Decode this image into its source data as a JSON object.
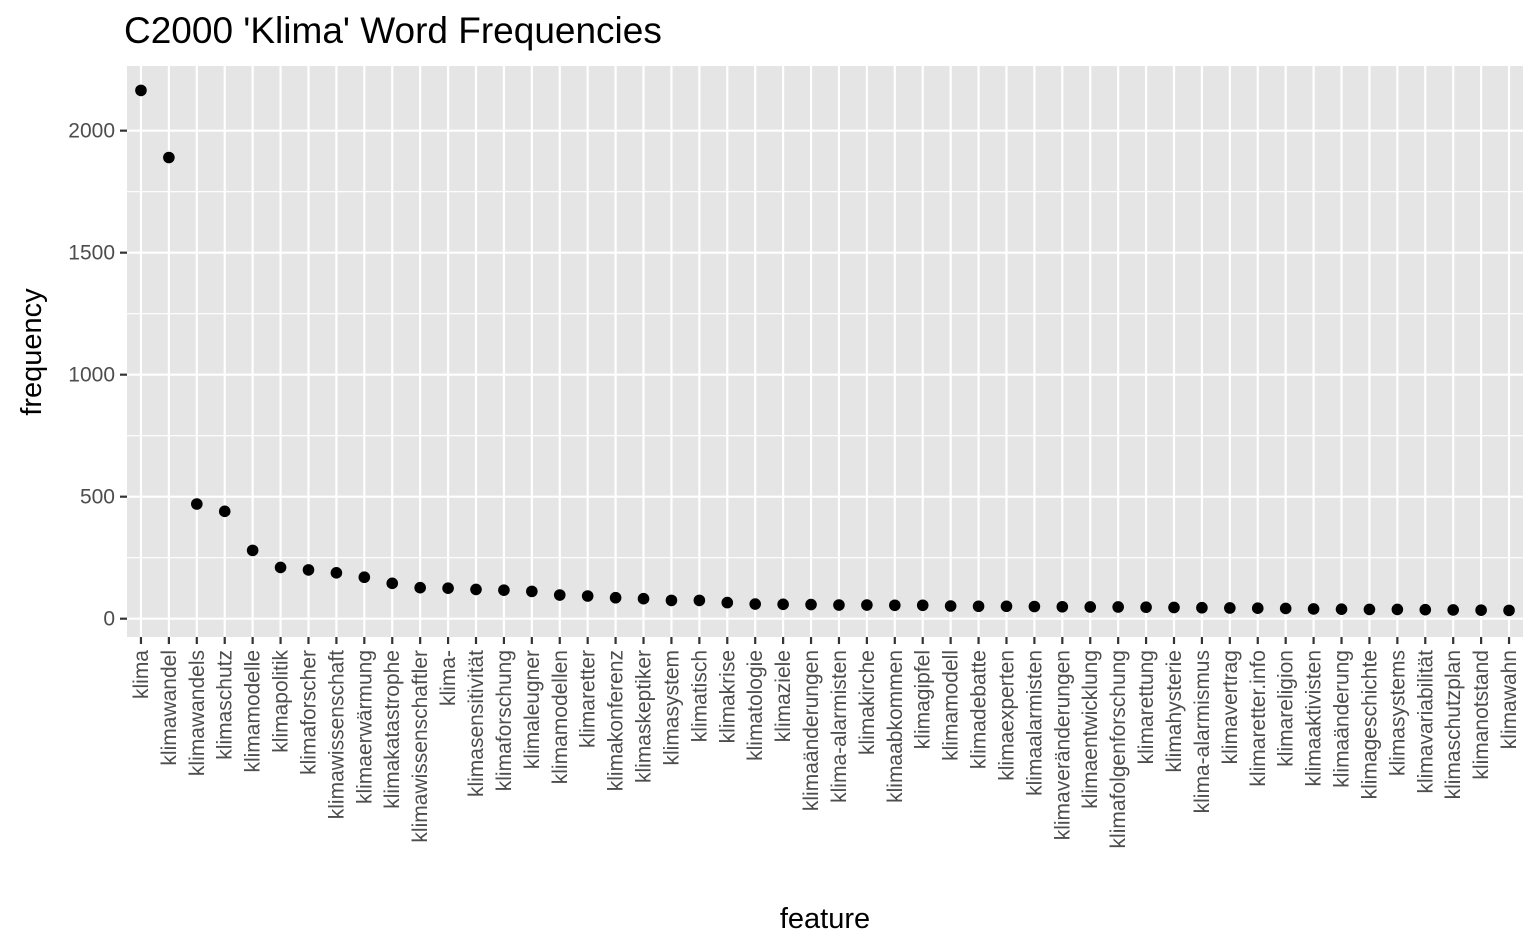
{
  "chart_data": {
    "type": "scatter",
    "title": "C2000 'Klima' Word Frequencies",
    "xlabel": "feature",
    "ylabel": "frequency",
    "ylim": [
      -75,
      2265
    ],
    "yticks": [
      0,
      500,
      1000,
      1500,
      2000
    ],
    "grid": true,
    "legend": "none",
    "colors": {
      "panel": "#e5e5e5",
      "grid": "#ffffff",
      "point": "#000000",
      "tick_text": "#4d4d4d",
      "tick_mark": "#333333"
    },
    "categories": [
      "klima",
      "klimawandel",
      "klimawandels",
      "klimaschutz",
      "klimamodelle",
      "klimapolitik",
      "klimaforscher",
      "klimawissenschaft",
      "klimaerwärmung",
      "klimakatastrophe",
      "klimawissenschaftler",
      "klima-",
      "klimasensitivität",
      "klimaforschung",
      "klimaleugner",
      "klimamodellen",
      "klimaretter",
      "klimakonferenz",
      "klimaskeptiker",
      "klimasystem",
      "klimatisch",
      "klimakrise",
      "klimatologie",
      "klimaziele",
      "klimaänderungen",
      "klima-alarmisten",
      "klimakirche",
      "klimaabkommen",
      "klimagipfel",
      "klimamodell",
      "klimadebatte",
      "klimaexperten",
      "klimaalarmisten",
      "klimaveränderungen",
      "klimaentwicklung",
      "klimafolgenforschung",
      "klimarettung",
      "klimahysterie",
      "klima-alarmismus",
      "klimavertrag",
      "klimaretter.info",
      "klimareligion",
      "klimaaktivisten",
      "klimaänderung",
      "klimageschichte",
      "klimasystems",
      "klimavariabilität",
      "klimaschutzplan",
      "klimanotstand",
      "klimawahn"
    ],
    "values": [
      2165,
      1890,
      470,
      440,
      280,
      210,
      200,
      188,
      170,
      145,
      127,
      125,
      120,
      117,
      112,
      97,
      93,
      86,
      82,
      75,
      75,
      66,
      60,
      59,
      58,
      56,
      56,
      55,
      55,
      52,
      51,
      51,
      50,
      49,
      48,
      48,
      47,
      46,
      45,
      44,
      43,
      42,
      40,
      39,
      38,
      38,
      37,
      36,
      35,
      34
    ]
  }
}
